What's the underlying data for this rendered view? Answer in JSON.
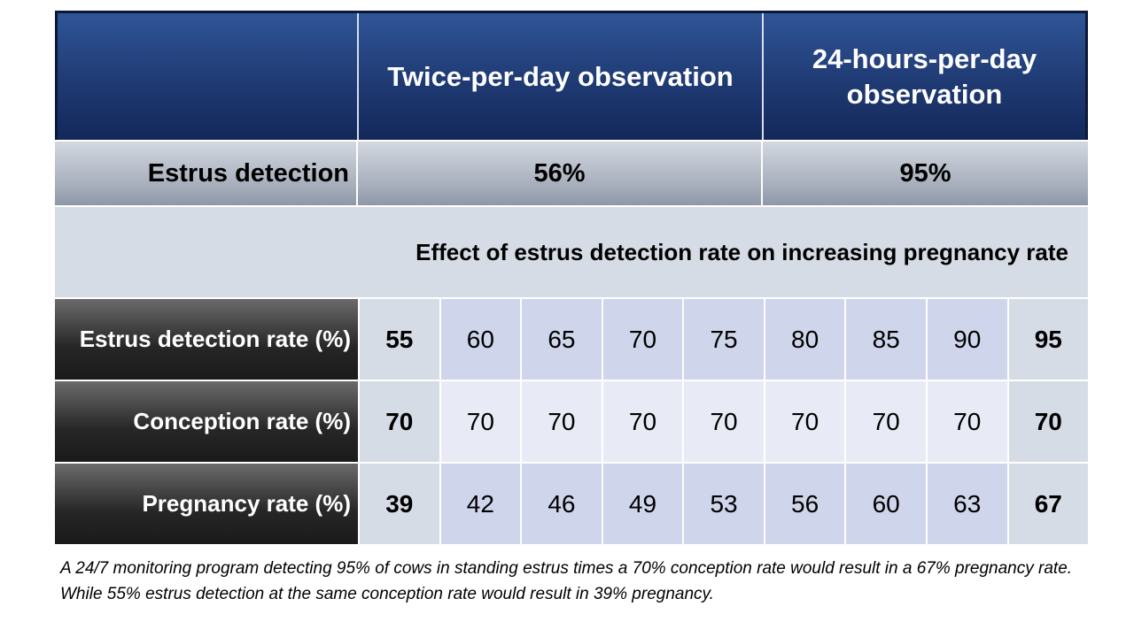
{
  "header": {
    "col1": "Twice-per-day observation",
    "col2": "24-hours-per-day observation"
  },
  "estrus_row": {
    "label": "Estrus detection",
    "col1": "56%",
    "col2": "95%"
  },
  "effect_title": "Effect of estrus detection rate on increasing pregnancy rate",
  "rows": [
    {
      "label": "Estrus detection rate (%)",
      "values": [
        "55",
        "60",
        "65",
        "70",
        "75",
        "80",
        "85",
        "90",
        "95"
      ]
    },
    {
      "label": "Conception rate (%)",
      "values": [
        "70",
        "70",
        "70",
        "70",
        "70",
        "70",
        "70",
        "70",
        "70"
      ]
    },
    {
      "label": "Pregnancy rate (%)",
      "values": [
        "39",
        "42",
        "46",
        "49",
        "53",
        "56",
        "60",
        "63",
        "67"
      ]
    }
  ],
  "caption": "A 24/7 monitoring program detecting 95% of cows in standing estrus times a 70% conception rate would result in a 67% pregnancy rate. While 55% estrus detection at the same conception rate would result in 39% pregnancy."
}
